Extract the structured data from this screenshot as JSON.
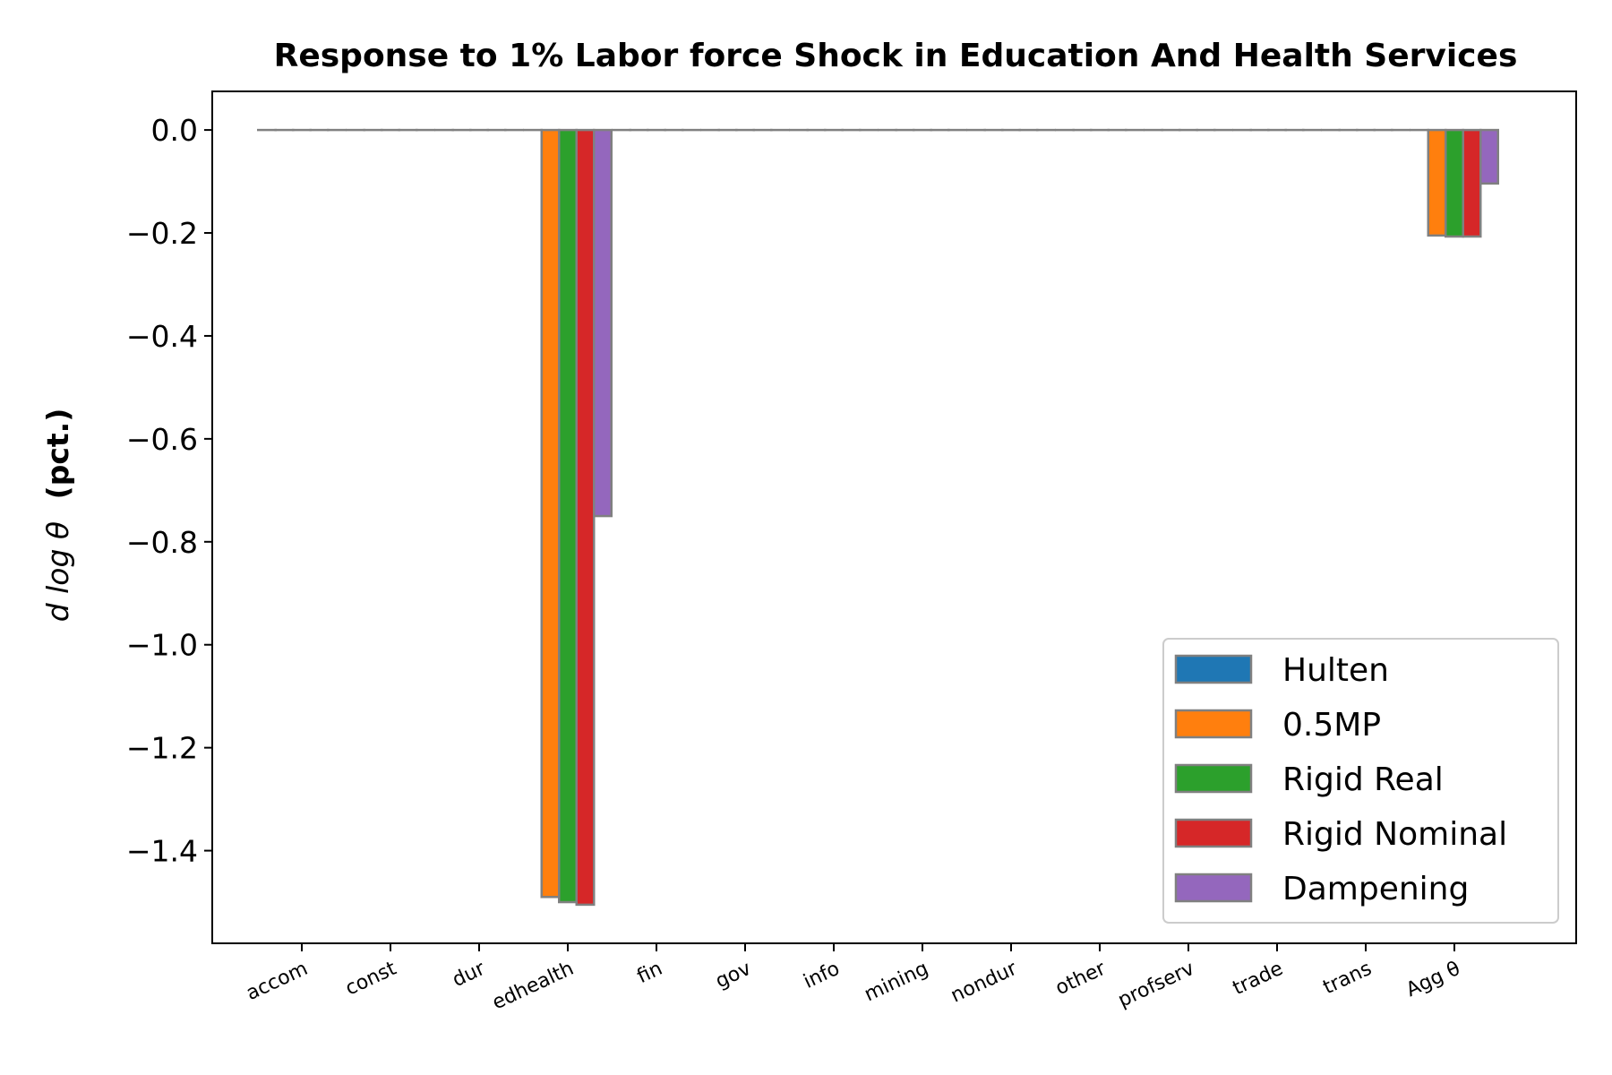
{
  "chart_data": {
    "type": "bar",
    "title": "Response to 1% Labor force Shock in Education And Health Services",
    "ylabel_math": "d log θ",
    "ylabel_unit": "(pct.)",
    "categories": [
      "accom",
      "const",
      "dur",
      "edhealth",
      "fin",
      "gov",
      "info",
      "mining",
      "nondur",
      "other",
      "profserv",
      "trade",
      "trans",
      "Agg θ"
    ],
    "yticks": [
      "0.0",
      "−0.2",
      "−0.4",
      "−0.6",
      "−0.8",
      "−1.0",
      "−1.2",
      "−1.4"
    ],
    "ytick_values": [
      0.0,
      -0.2,
      -0.4,
      -0.6,
      -0.8,
      -1.0,
      -1.2,
      -1.4
    ],
    "ylim": [
      -1.58,
      0.075
    ],
    "grid": false,
    "legend_position": "lower-right",
    "series": [
      {
        "name": "Hulten",
        "color": "#1f77b4",
        "values": [
          0,
          0,
          0,
          0,
          0,
          0,
          0,
          0,
          0,
          0,
          0,
          0,
          0,
          0
        ]
      },
      {
        "name": "0.5MP",
        "color": "#ff7f0e",
        "values": [
          0,
          0,
          0,
          -1.49,
          0,
          0,
          0,
          0,
          0,
          0,
          0,
          0,
          0,
          -0.205
        ]
      },
      {
        "name": "Rigid Real",
        "color": "#2ca02c",
        "values": [
          0,
          0,
          0,
          -1.5,
          0,
          0,
          0,
          0,
          0,
          0,
          0,
          0,
          0,
          -0.207
        ]
      },
      {
        "name": "Rigid Nominal",
        "color": "#d62728",
        "values": [
          0,
          0,
          0,
          -1.505,
          0,
          0,
          0,
          0,
          0,
          0,
          0,
          0,
          0,
          -0.207
        ]
      },
      {
        "name": "Dampening",
        "color": "#9467bd",
        "values": [
          0,
          0,
          0,
          -0.75,
          0,
          0,
          0,
          0,
          0,
          0,
          0,
          0,
          0,
          -0.104
        ]
      }
    ]
  }
}
